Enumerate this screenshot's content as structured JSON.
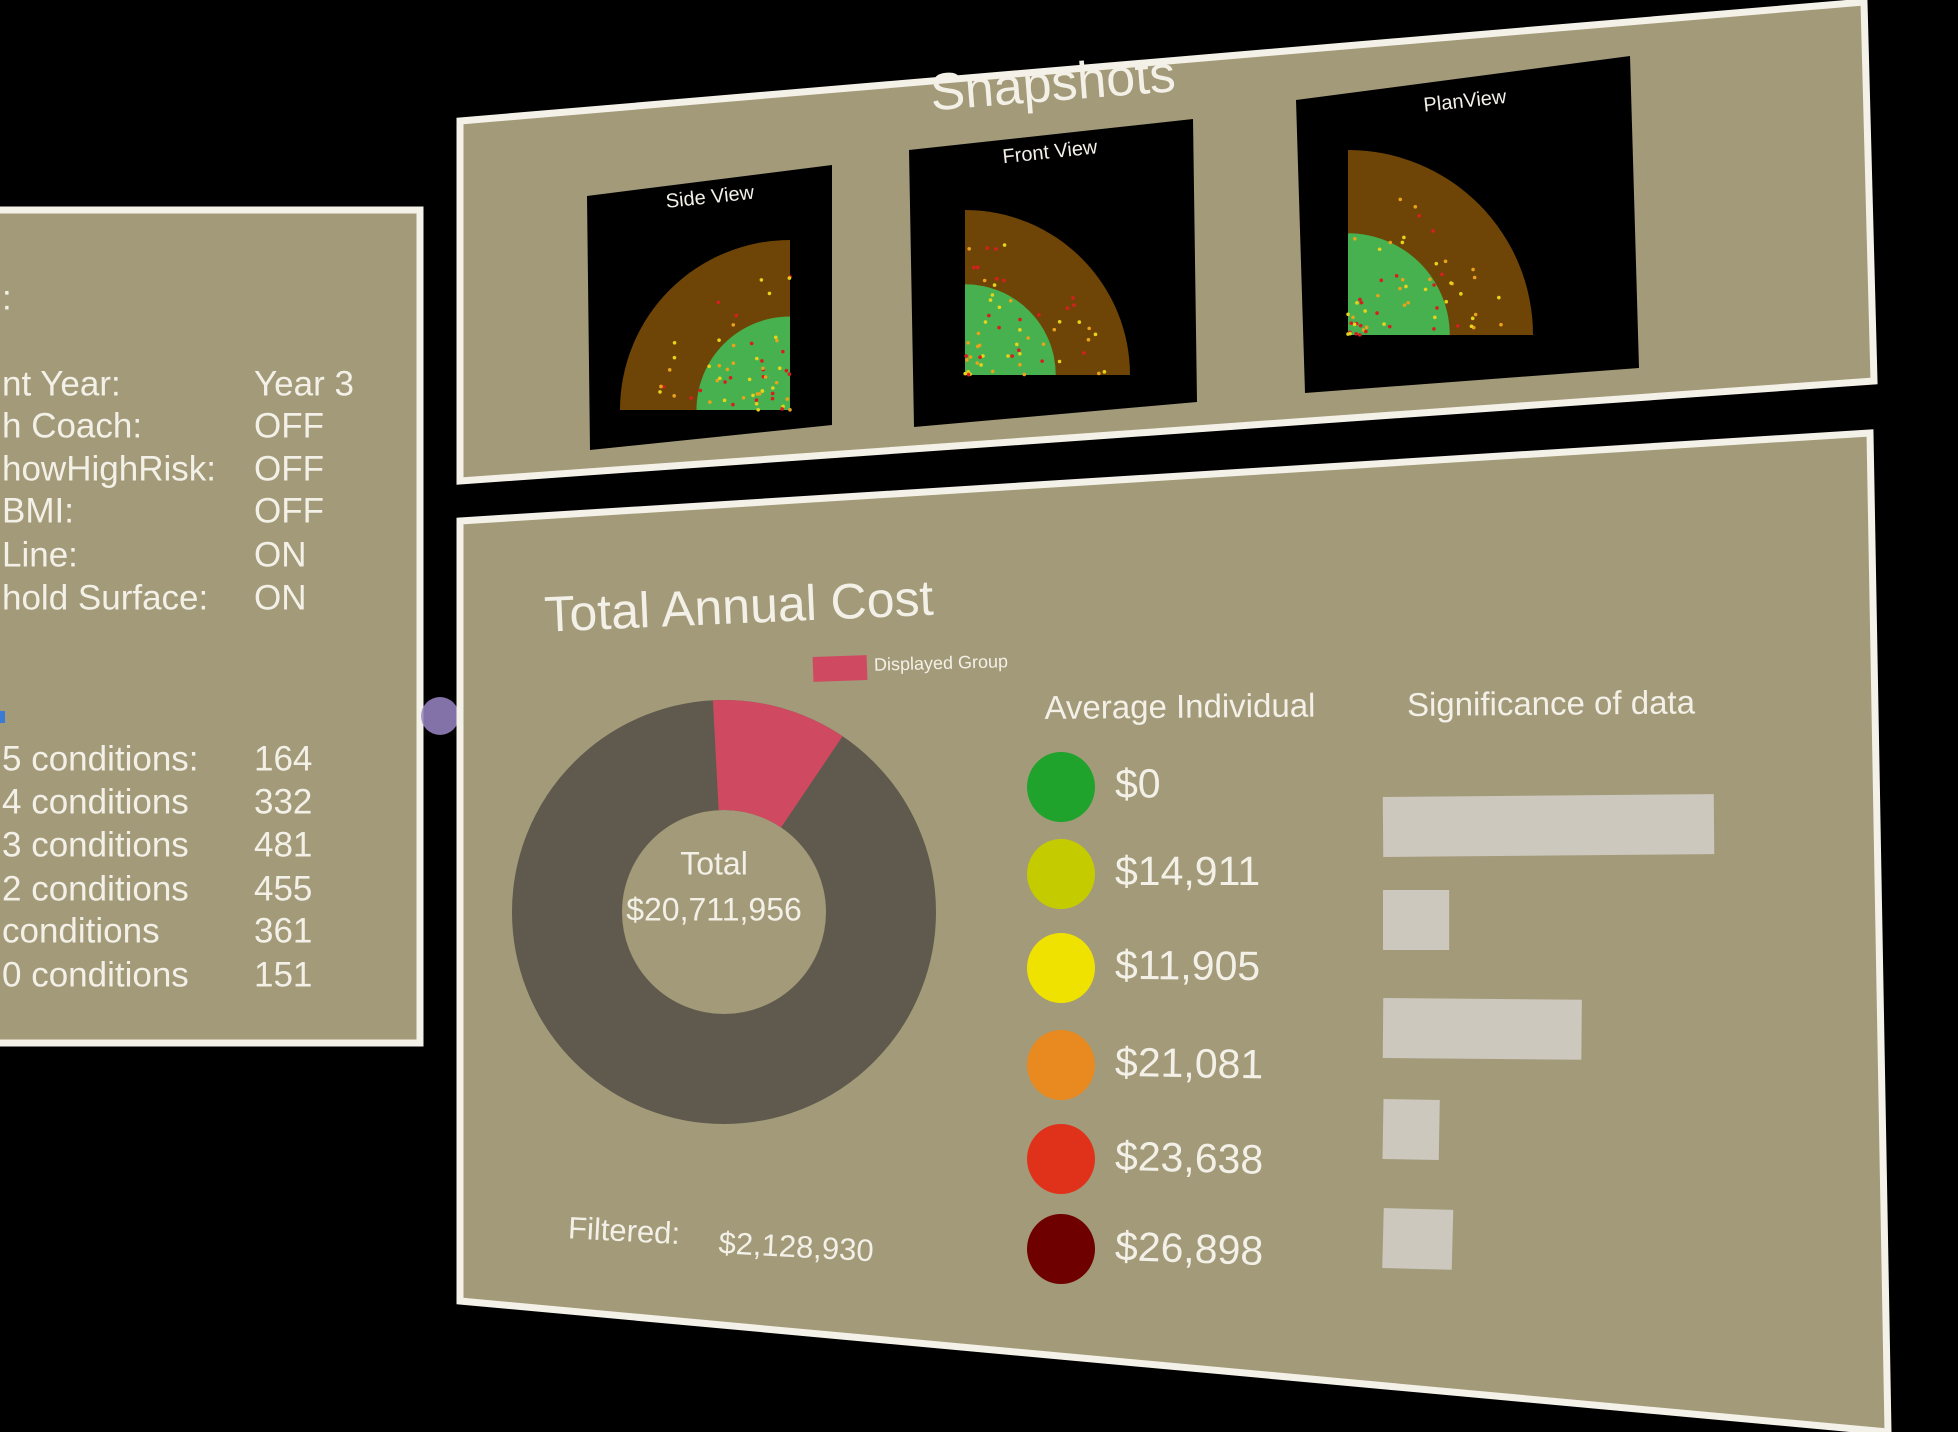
{
  "left_panel": {
    "header": ":",
    "settings": [
      {
        "label": "nt Year:",
        "value": "Year 3"
      },
      {
        "label": "h Coach:",
        "value": "OFF"
      },
      {
        "label": "howHighRisk:",
        "value": "OFF"
      },
      {
        "label": "BMI:",
        "value": "OFF"
      },
      {
        "label": "Line:",
        "value": "ON"
      },
      {
        "label": "hold Surface:",
        "value": "ON"
      }
    ],
    "conditions": [
      {
        "label": "5 conditions:",
        "count": 164
      },
      {
        "label": "4 conditions",
        "count": 332
      },
      {
        "label": "3 conditions",
        "count": 481
      },
      {
        "label": "2 conditions",
        "count": 455
      },
      {
        "label": "conditions",
        "count": 361
      },
      {
        "label": "0 conditions",
        "count": 151
      }
    ]
  },
  "snapshots": {
    "title": "Snapshots",
    "views": [
      "Side View",
      "Front View",
      "PlanView"
    ]
  },
  "cost_panel": {
    "title": "Total Annual Cost",
    "legend": {
      "label": "Displayed Group",
      "color": "#cf4a60"
    },
    "donut_color": "#5f5a4d",
    "total_label": "Total",
    "total": {
      "value": 20711956,
      "label": "$20,711,956"
    },
    "filtered_label": "Filtered:",
    "filtered": {
      "value": 2128930,
      "label": "$2,128,930"
    },
    "average_title": "Average Individual",
    "averages": [
      {
        "label": "$0",
        "color": "#1fa32d"
      },
      {
        "label": "$14,911",
        "color": "#c4cc00"
      },
      {
        "label": "$11,905",
        "color": "#efe200"
      },
      {
        "label": "$21,081",
        "color": "#e88a20"
      },
      {
        "label": "$23,638",
        "color": "#e0311a"
      },
      {
        "label": "$26,898",
        "color": "#6e0000"
      }
    ],
    "significance_title": "Significance of data",
    "significance": [
      100,
      20,
      60,
      17,
      21
    ],
    "significance_color": "#cdc8bd"
  }
}
